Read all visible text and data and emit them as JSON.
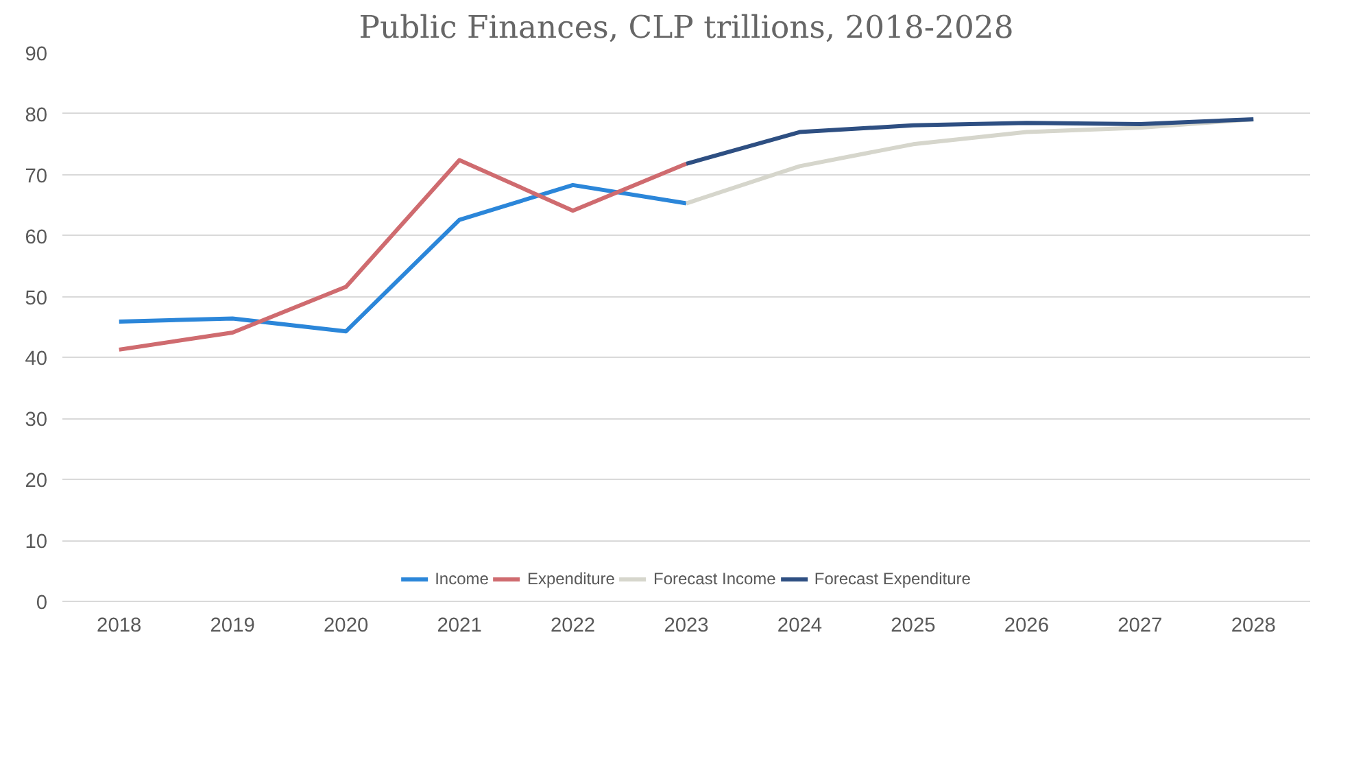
{
  "chart_data": {
    "type": "line",
    "title": "Public Finances, CLP trillions, 2018-2028",
    "categories": [
      "2018",
      "2019",
      "2020",
      "2021",
      "2022",
      "2023",
      "2024",
      "2025",
      "2026",
      "2027",
      "2028"
    ],
    "series": [
      {
        "name": "Income",
        "color": "#2b86d9",
        "values": [
          45.9,
          46.4,
          44.3,
          62.6,
          68.3,
          65.3,
          null,
          null,
          null,
          null,
          null
        ]
      },
      {
        "name": "Expenditure",
        "color": "#cf6b6f",
        "values": [
          41.3,
          44.1,
          51.6,
          72.4,
          64.1,
          71.8,
          null,
          null,
          null,
          null,
          null
        ]
      },
      {
        "name": "Forecast Income",
        "color": "#d6d6cc",
        "values": [
          null,
          null,
          null,
          null,
          null,
          65.3,
          71.4,
          75.0,
          77.0,
          77.7,
          79.1
        ]
      },
      {
        "name": "Forecast Expenditure",
        "color": "#2e4f82",
        "values": [
          null,
          null,
          null,
          null,
          null,
          71.8,
          77.0,
          78.1,
          78.5,
          78.3,
          79.1
        ]
      }
    ],
    "ylim": [
      0,
      90
    ],
    "yticks": [
      0,
      10,
      20,
      30,
      40,
      50,
      60,
      70,
      80,
      90
    ],
    "grid": "y",
    "legend": "bottom",
    "marker": "none",
    "line_style": "solid"
  }
}
